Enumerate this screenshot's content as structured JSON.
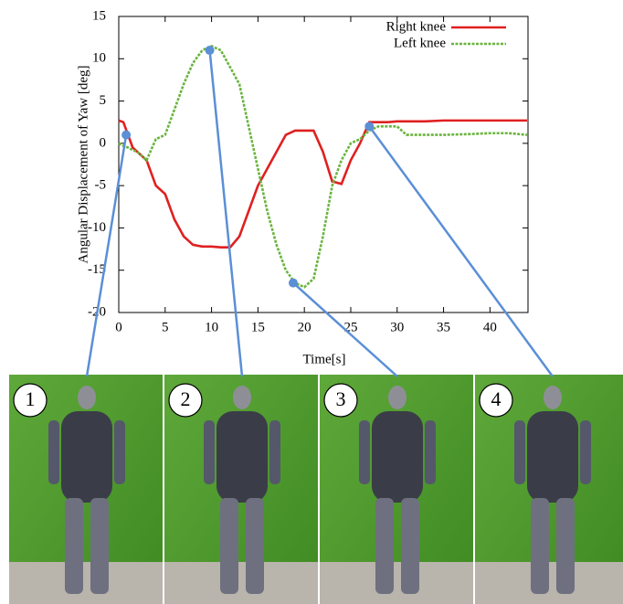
{
  "chart_data": {
    "type": "line",
    "xlabel": "Time[s]",
    "ylabel": "Angular Displacement of Yaw [deg]",
    "x": [
      0,
      0.5,
      1,
      1.5,
      2,
      3,
      4,
      5,
      6,
      7,
      8,
      9,
      10,
      11,
      12,
      13,
      14,
      15,
      16,
      17,
      18,
      19,
      20,
      21,
      22,
      23,
      24,
      25,
      26,
      27,
      28,
      29,
      30,
      31,
      33,
      35,
      38,
      40,
      42,
      44
    ],
    "series": [
      {
        "name": "Right knee",
        "color": "#e02020",
        "dash": false,
        "values": [
          2.7,
          2.5,
          1,
          -0.5,
          -1,
          -2,
          -5,
          -6,
          -9,
          -11,
          -12,
          -12.2,
          -12.2,
          -12.3,
          -12.3,
          -11,
          -8,
          -5,
          -3,
          -1,
          1,
          1.5,
          1.5,
          1.5,
          -1,
          -4.5,
          -4.8,
          -2,
          0,
          2.5,
          2.5,
          2.5,
          2.6,
          2.6,
          2.6,
          2.7,
          2.7,
          2.7,
          2.7,
          2.7
        ]
      },
      {
        "name": "Left knee",
        "color": "#6ab43e",
        "dash": true,
        "values": [
          0,
          -0.3,
          -0.5,
          -0.8,
          -1,
          -2,
          0.5,
          1,
          4,
          7,
          9.5,
          11,
          11.5,
          11,
          9,
          7,
          2,
          -3,
          -8,
          -12,
          -15,
          -16.5,
          -17,
          -16,
          -11,
          -5,
          -2,
          0,
          0.5,
          1.5,
          2,
          2,
          2,
          1,
          1,
          1,
          1.1,
          1.2,
          1.2,
          1
        ]
      }
    ],
    "annotations": [
      {
        "label": "1",
        "x": 0.8,
        "y": 1
      },
      {
        "label": "2",
        "x": 9.8,
        "y": 11
      },
      {
        "label": "3",
        "x": 18.8,
        "y": -16.5
      },
      {
        "label": "4",
        "x": 27,
        "y": 2
      }
    ],
    "xlim": [
      0,
      44.1
    ],
    "ylim": [
      -20,
      15
    ],
    "xticks": [
      0,
      5,
      10,
      15,
      20,
      25,
      30,
      35,
      40
    ],
    "yticks": [
      -20,
      -15,
      -10,
      -5,
      0,
      5,
      10,
      15
    ],
    "legend": "upper right"
  }
}
